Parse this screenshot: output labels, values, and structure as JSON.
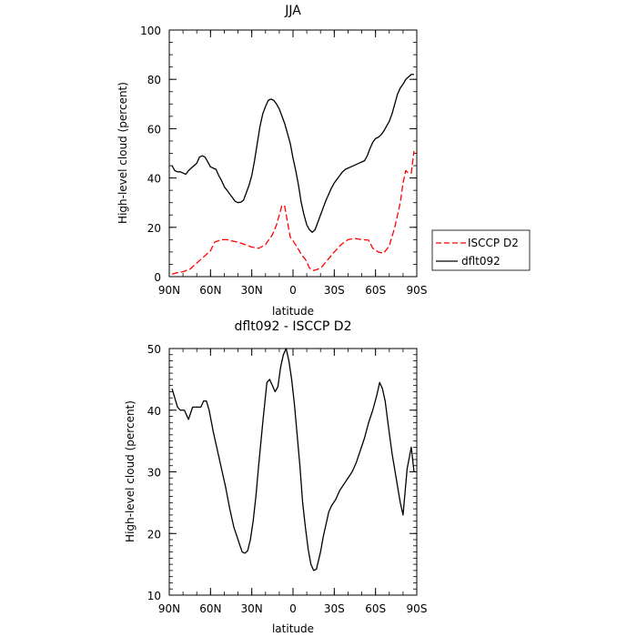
{
  "chart_data": [
    {
      "type": "line",
      "title": "JJA",
      "xlabel": "latitude",
      "ylabel": "High-level cloud (percent)",
      "xlim": [
        90,
        -90
      ],
      "ylim": [
        0,
        100
      ],
      "xticks": [
        90,
        60,
        30,
        0,
        -30,
        -60,
        -90
      ],
      "xtick_labels": [
        "90N",
        "60N",
        "30N",
        "0",
        "30S",
        "60S",
        "90S"
      ],
      "yticks": [
        0,
        20,
        40,
        60,
        80,
        100
      ],
      "ytick_labels": [
        "0",
        "20",
        "40",
        "60",
        "80",
        "100"
      ],
      "legend_position": "right",
      "series": [
        {
          "name": "ISCCP D2",
          "color": "#ff0000",
          "style": "dashed",
          "x": [
            88,
            85,
            80,
            75,
            70,
            65,
            60,
            57,
            52,
            48,
            45,
            40,
            35,
            30,
            25,
            20,
            15,
            12,
            10,
            8,
            6,
            4,
            2,
            0,
            -3,
            -6,
            -9,
            -12,
            -15,
            -18,
            -21,
            -24,
            -30,
            -35,
            -40,
            -45,
            -50,
            -55,
            -58,
            -62,
            -66,
            -70,
            -74,
            -78,
            -80,
            -82,
            -84,
            -86,
            -88
          ],
          "y": [
            1,
            1.5,
            2,
            3,
            5.5,
            8,
            10.5,
            14,
            15,
            15,
            14.5,
            14,
            13,
            12,
            11.5,
            13,
            17,
            21,
            25,
            29,
            28.5,
            22,
            16,
            14.5,
            12,
            9,
            7,
            3.5,
            2.5,
            3,
            4,
            6,
            10,
            13,
            15,
            15.5,
            15,
            14.8,
            11.5,
            10,
            9.5,
            12.5,
            20,
            30,
            38,
            43,
            42,
            42,
            51
          ]
        },
        {
          "name": "dflt092",
          "color": "#000000",
          "style": "solid",
          "x": [
            88,
            86,
            84,
            82,
            80,
            78,
            76,
            73,
            70,
            68,
            66,
            64,
            62,
            60,
            58,
            56,
            54,
            52,
            50,
            48,
            46,
            44,
            42,
            40,
            38,
            36,
            34,
            32,
            30,
            28,
            26,
            24,
            22,
            20,
            18,
            16,
            14,
            12,
            10,
            8,
            6,
            4,
            2,
            0,
            -2,
            -4,
            -6,
            -8,
            -10,
            -12,
            -14,
            -16,
            -18,
            -20,
            -22,
            -24,
            -26,
            -28,
            -30,
            -32,
            -34,
            -36,
            -38,
            -40,
            -42,
            -44,
            -46,
            -48,
            -50,
            -52,
            -54,
            -56,
            -58,
            -60,
            -62,
            -64,
            -66,
            -68,
            -70,
            -72,
            -74,
            -76,
            -78,
            -80,
            -82,
            -84,
            -86,
            -88
          ],
          "y": [
            45,
            43,
            42.5,
            42.5,
            42,
            41.5,
            43,
            44.5,
            46,
            48.5,
            49,
            48.5,
            46.5,
            44.5,
            44,
            43.5,
            41,
            39,
            36.5,
            35,
            33.5,
            32,
            30.5,
            30,
            30.2,
            31,
            34,
            37,
            41,
            47,
            54,
            61,
            66,
            69,
            71.5,
            72,
            71.5,
            70,
            68,
            65,
            62,
            58,
            54,
            48,
            43,
            37,
            30,
            25,
            21,
            19,
            18,
            19,
            22,
            25,
            28,
            31,
            33.5,
            36,
            38,
            39.5,
            41,
            42.5,
            43.5,
            44,
            44.5,
            45,
            45.5,
            46,
            46.5,
            47,
            49,
            52,
            54.5,
            56,
            56.5,
            57.5,
            59,
            61,
            63,
            66,
            70,
            74,
            76.5,
            78,
            80,
            81,
            82,
            82
          ]
        }
      ]
    },
    {
      "type": "line",
      "title": "dflt092 - ISCCP D2",
      "xlabel": "latitude",
      "ylabel": "High-level cloud (percent)",
      "xlim": [
        90,
        -90
      ],
      "ylim": [
        10,
        50
      ],
      "xticks": [
        90,
        60,
        30,
        0,
        -30,
        -60,
        -90
      ],
      "xtick_labels": [
        "90N",
        "60N",
        "30N",
        "0",
        "30S",
        "60S",
        "90S"
      ],
      "yticks": [
        10,
        20,
        30,
        40,
        50
      ],
      "ytick_labels": [
        "10",
        "20",
        "30",
        "40",
        "50"
      ],
      "series": [
        {
          "color": "#000000",
          "style": "solid",
          "x": [
            88,
            86,
            84,
            82,
            79,
            76,
            73,
            70,
            67,
            65,
            63,
            61,
            58,
            55,
            52,
            49,
            46,
            43,
            40,
            37,
            35,
            33,
            31,
            29,
            27,
            25,
            22,
            19,
            17,
            15,
            13,
            11,
            9,
            7,
            5,
            3,
            1,
            -1,
            -3,
            -5,
            -7,
            -9,
            -11,
            -13,
            -15,
            -17,
            -20,
            -22,
            -24,
            -26,
            -28,
            -31,
            -34,
            -37,
            -40,
            -43,
            -46,
            -49,
            -52,
            -55,
            -58,
            -61,
            -63,
            -65,
            -67,
            -69,
            -72,
            -75,
            -78,
            -80,
            -83,
            -86,
            -88
          ],
          "y": [
            43.5,
            42,
            40.5,
            40,
            40,
            38.5,
            40.5,
            40.5,
            40.5,
            41.5,
            41.5,
            40,
            36.5,
            33.5,
            30.5,
            27.5,
            24,
            21,
            19,
            17,
            16.8,
            17.2,
            19,
            22,
            26,
            31,
            38,
            44.5,
            45,
            44,
            43,
            43.8,
            47,
            49,
            50,
            48,
            45,
            41,
            36,
            31,
            25,
            21,
            17.5,
            15,
            14,
            14.2,
            17,
            19.5,
            21.5,
            23.5,
            24.5,
            25.5,
            27,
            28,
            29,
            30,
            31.5,
            33.5,
            35.5,
            38,
            40,
            42.5,
            44.5,
            43.5,
            41.5,
            38,
            33,
            29,
            25,
            23,
            30.5,
            34,
            30
          ]
        }
      ]
    }
  ]
}
